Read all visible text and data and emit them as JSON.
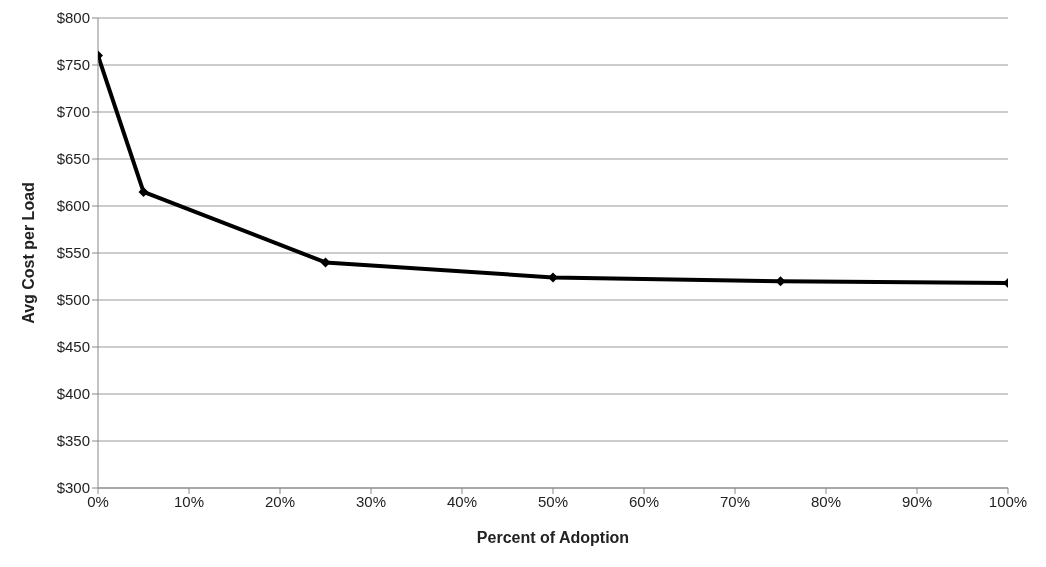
{
  "chart_data": {
    "type": "line",
    "xlabel": "Percent of Adoption",
    "ylabel": "Avg Cost per Load",
    "x": [
      0,
      5,
      25,
      50,
      75,
      100
    ],
    "series": [
      {
        "color": "#000000",
        "values": [
          760,
          615,
          540,
          524,
          520,
          518
        ]
      }
    ],
    "xlim": [
      0,
      100
    ],
    "xticks": [
      {
        "value": 0,
        "label": "0%"
      },
      {
        "value": 10,
        "label": "10%"
      },
      {
        "value": 20,
        "label": "20%"
      },
      {
        "value": 30,
        "label": "30%"
      },
      {
        "value": 40,
        "label": "40%"
      },
      {
        "value": 50,
        "label": "50%"
      },
      {
        "value": 60,
        "label": "60%"
      },
      {
        "value": 70,
        "label": "70%"
      },
      {
        "value": 80,
        "label": "80%"
      },
      {
        "value": 90,
        "label": "90%"
      },
      {
        "value": 100,
        "label": "100%"
      }
    ],
    "ylim": [
      300,
      800
    ],
    "yticks": [
      {
        "value": 300,
        "label": "$300"
      },
      {
        "value": 350,
        "label": "$350"
      },
      {
        "value": 400,
        "label": "$400"
      },
      {
        "value": 450,
        "label": "$450"
      },
      {
        "value": 500,
        "label": "$500"
      },
      {
        "value": 550,
        "label": "$550"
      },
      {
        "value": 600,
        "label": "$600"
      },
      {
        "value": 650,
        "label": "$650"
      },
      {
        "value": 700,
        "label": "$700"
      },
      {
        "value": 750,
        "label": "$750"
      },
      {
        "value": 800,
        "label": "$800"
      }
    ],
    "grid": "y",
    "marker": "diamond",
    "line_style": "solid",
    "legend": false
  }
}
